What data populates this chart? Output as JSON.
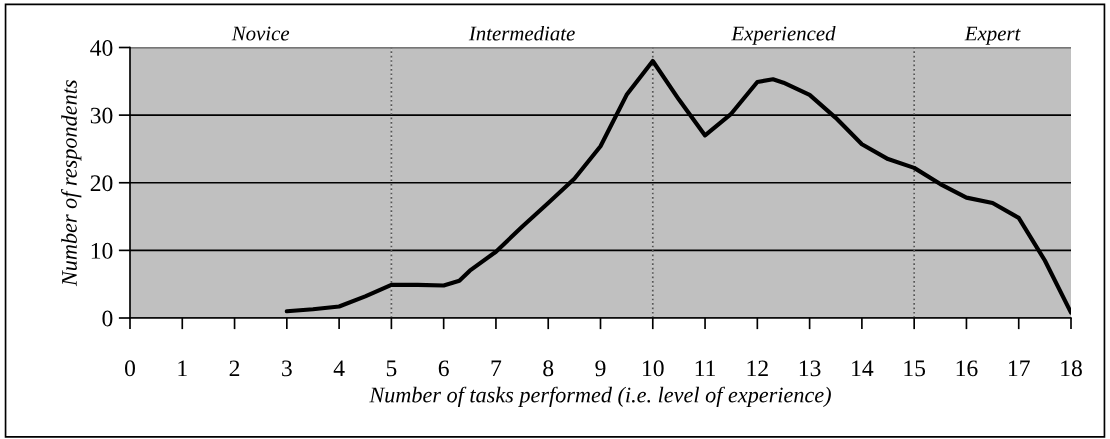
{
  "chart_data": {
    "type": "line",
    "xlabel": "Number of tasks performed (i.e. level of experience)",
    "ylabel": "Number of respondents",
    "x": [
      3,
      3.5,
      4,
      4.5,
      5,
      5.5,
      6,
      6.3,
      6.5,
      7,
      7.5,
      8,
      8.5,
      9,
      9.5,
      10,
      10.5,
      11,
      11.5,
      12,
      12.3,
      12.5,
      13,
      13.5,
      14,
      14.5,
      15,
      15.5,
      16,
      16.5,
      17,
      17.5,
      18
    ],
    "series": [
      {
        "color": "#000000",
        "values": [
          1,
          1.3,
          1.7,
          3.2,
          4.9,
          4.9,
          4.8,
          5.5,
          7,
          9.8,
          13.5,
          17,
          20.6,
          25.4,
          33,
          38,
          32.3,
          27,
          30.2,
          34.9,
          35.3,
          34.8,
          33,
          29.6,
          25.7,
          23.5,
          22.2,
          19.8,
          17.8,
          17,
          14.8,
          8.5,
          0.8
        ]
      }
    ],
    "xlim": [
      0,
      18
    ],
    "xticks": [
      0,
      1,
      2,
      3,
      4,
      5,
      6,
      7,
      8,
      9,
      10,
      11,
      12,
      13,
      14,
      15,
      16,
      17,
      18
    ],
    "ylim": [
      0,
      40
    ],
    "yticks": [
      0,
      10,
      20,
      30,
      40
    ],
    "grid": "y",
    "marker": "none",
    "line_style": "solid",
    "ref_lines": [
      {
        "axis": "x",
        "value": 5,
        "line_style": "dotted",
        "color": "#555555"
      },
      {
        "axis": "x",
        "value": 10,
        "line_style": "dotted",
        "color": "#555555"
      },
      {
        "axis": "x",
        "value": 15,
        "line_style": "dotted",
        "color": "#555555"
      }
    ],
    "bands": [
      {
        "axis": "x",
        "from": 0,
        "to": 5,
        "label": "Novice",
        "color": "#c0c0c0"
      },
      {
        "axis": "x",
        "from": 5,
        "to": 10,
        "label": "Intermediate",
        "color": "#c0c0c0"
      },
      {
        "axis": "x",
        "from": 10,
        "to": 15,
        "label": "Experienced",
        "color": "#c0c0c0"
      },
      {
        "axis": "x",
        "from": 15,
        "to": 18,
        "label": "Expert",
        "color": "#c0c0c0"
      }
    ]
  }
}
